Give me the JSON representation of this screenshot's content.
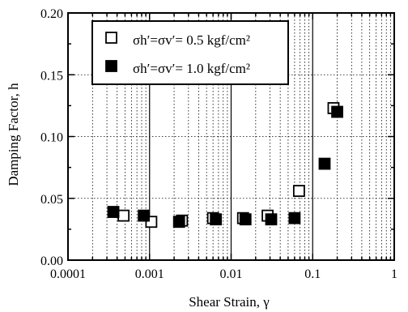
{
  "chart_data": {
    "type": "scatter",
    "xlabel": "Shear Strain, γ",
    "ylabel": "Damping Factor, h",
    "xscale": "log",
    "xlim": [
      0.0001,
      1
    ],
    "ylim": [
      0,
      0.2
    ],
    "grid": true,
    "legend_position": "top-center",
    "x_ticks": [
      {
        "value": 0.0001,
        "label": "0.0001"
      },
      {
        "value": 0.001,
        "label": "0.001"
      },
      {
        "value": 0.01,
        "label": "0.01"
      },
      {
        "value": 0.1,
        "label": "0.1"
      },
      {
        "value": 1,
        "label": "1"
      }
    ],
    "y_ticks": [
      {
        "value": 0,
        "label": "0.00"
      },
      {
        "value": 0.05,
        "label": "0.05"
      },
      {
        "value": 0.1,
        "label": "0.10"
      },
      {
        "value": 0.15,
        "label": "0.15"
      },
      {
        "value": 0.2,
        "label": "0.20"
      }
    ],
    "series": [
      {
        "name": "σh′=σv′= 0.5 kgf/cm²",
        "marker": "open-square",
        "x": [
          0.00048,
          0.00105,
          0.0025,
          0.006,
          0.014,
          0.028,
          0.068,
          0.18
        ],
        "y": [
          0.036,
          0.031,
          0.032,
          0.034,
          0.034,
          0.036,
          0.056,
          0.123
        ]
      },
      {
        "name": "σh′=σv′= 1.0 kgf/cm²",
        "marker": "filled-square",
        "x": [
          0.00036,
          0.00085,
          0.0023,
          0.0065,
          0.015,
          0.031,
          0.06,
          0.14,
          0.2
        ],
        "y": [
          0.039,
          0.036,
          0.031,
          0.033,
          0.033,
          0.033,
          0.034,
          0.078,
          0.12
        ]
      }
    ]
  }
}
